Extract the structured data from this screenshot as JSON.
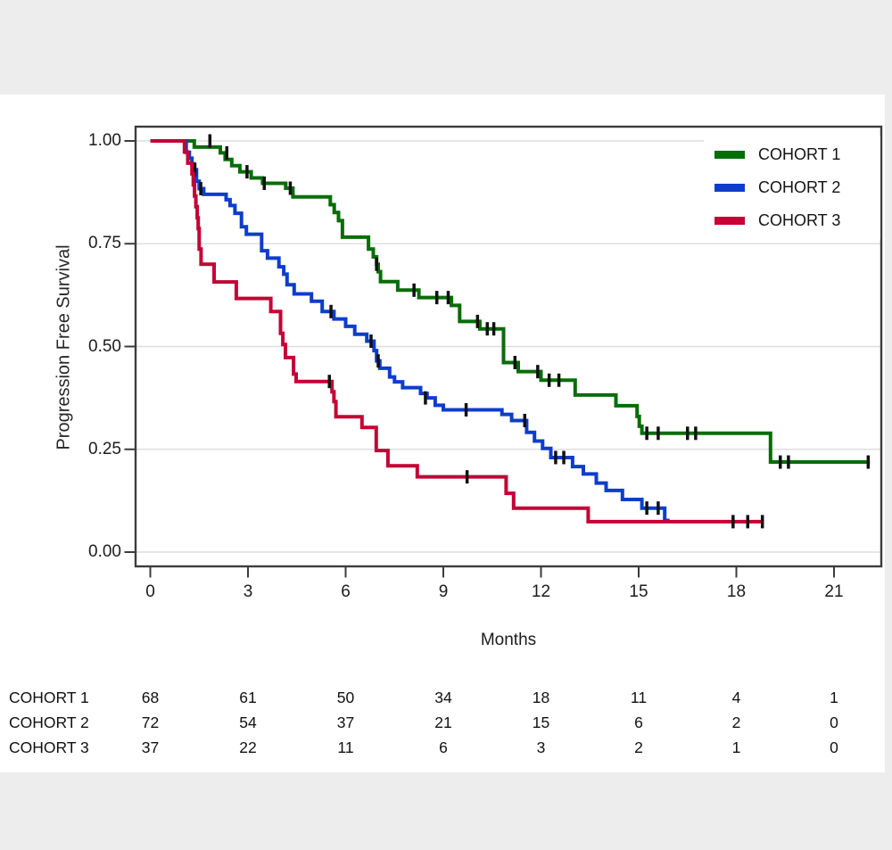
{
  "figure": {
    "background_color": "#ededed",
    "panel_color": "#ffffff",
    "axis_color": "#3c3c3c",
    "grid_color": "#dedede",
    "censor_color": "#111111"
  },
  "chart_data": {
    "type": "line",
    "subtype": "kaplan-meier-step",
    "title": "",
    "xlabel": "Months",
    "ylabel": "Progression Free Survival",
    "xticks": [
      0,
      3,
      6,
      9,
      12,
      15,
      18,
      21
    ],
    "ytick_labels": [
      "1.00",
      "0.75",
      "0.50",
      "0.25",
      "0.00"
    ],
    "ytick_values": [
      1.0,
      0.75,
      0.5,
      0.25,
      0.0
    ],
    "xlim": [
      0,
      22.45
    ],
    "ylim": [
      0,
      1
    ],
    "grid": true,
    "legend_position": "top-right",
    "series": [
      {
        "name": "COHORT 1",
        "color": "#076d07",
        "steps": [
          [
            0,
            1.0
          ],
          [
            1.35,
            0.985
          ],
          [
            2.15,
            0.971
          ],
          [
            2.3,
            0.955
          ],
          [
            2.5,
            0.94
          ],
          [
            2.75,
            0.925
          ],
          [
            3.1,
            0.91
          ],
          [
            3.45,
            0.897
          ],
          [
            4.16,
            0.885
          ],
          [
            4.38,
            0.864
          ],
          [
            5.53,
            0.845
          ],
          [
            5.65,
            0.826
          ],
          [
            5.78,
            0.806
          ],
          [
            5.9,
            0.766
          ],
          [
            6.7,
            0.737
          ],
          [
            6.85,
            0.718
          ],
          [
            6.95,
            0.7
          ],
          [
            7.0,
            0.682
          ],
          [
            7.07,
            0.658
          ],
          [
            7.6,
            0.637
          ],
          [
            8.25,
            0.619
          ],
          [
            9.25,
            0.6
          ],
          [
            9.5,
            0.561
          ],
          [
            10.12,
            0.543
          ],
          [
            10.85,
            0.461
          ],
          [
            11.3,
            0.439
          ],
          [
            12.0,
            0.418
          ],
          [
            13.05,
            0.382
          ],
          [
            14.3,
            0.356
          ],
          [
            14.95,
            0.33
          ],
          [
            15.02,
            0.306
          ],
          [
            15.1,
            0.289
          ],
          [
            19.05,
            0.219
          ],
          [
            22.1,
            0.219
          ]
        ],
        "censors": [
          [
            1.83,
            1.0
          ],
          [
            2.35,
            0.971
          ],
          [
            2.97,
            0.925
          ],
          [
            3.5,
            0.897
          ],
          [
            4.3,
            0.885
          ],
          [
            6.95,
            0.7
          ],
          [
            8.1,
            0.637
          ],
          [
            8.8,
            0.619
          ],
          [
            9.15,
            0.619
          ],
          [
            10.05,
            0.561
          ],
          [
            10.35,
            0.543
          ],
          [
            10.55,
            0.543
          ],
          [
            11.2,
            0.461
          ],
          [
            11.9,
            0.439
          ],
          [
            12.25,
            0.418
          ],
          [
            12.55,
            0.418
          ],
          [
            15.25,
            0.289
          ],
          [
            15.6,
            0.289
          ],
          [
            16.5,
            0.289
          ],
          [
            16.75,
            0.289
          ],
          [
            19.35,
            0.219
          ],
          [
            19.6,
            0.219
          ],
          [
            22.05,
            0.219
          ]
        ]
      },
      {
        "name": "COHORT 2",
        "color": "#0e3dcc",
        "steps": [
          [
            0,
            1.0
          ],
          [
            1.1,
            0.972
          ],
          [
            1.2,
            0.958
          ],
          [
            1.28,
            0.944
          ],
          [
            1.35,
            0.93
          ],
          [
            1.42,
            0.902
          ],
          [
            1.5,
            0.884
          ],
          [
            1.64,
            0.87
          ],
          [
            2.33,
            0.857
          ],
          [
            2.45,
            0.843
          ],
          [
            2.6,
            0.824
          ],
          [
            2.8,
            0.791
          ],
          [
            2.95,
            0.773
          ],
          [
            3.42,
            0.733
          ],
          [
            3.6,
            0.715
          ],
          [
            3.95,
            0.694
          ],
          [
            4.1,
            0.676
          ],
          [
            4.2,
            0.65
          ],
          [
            4.42,
            0.628
          ],
          [
            4.95,
            0.61
          ],
          [
            5.28,
            0.585
          ],
          [
            5.64,
            0.567
          ],
          [
            6.0,
            0.549
          ],
          [
            6.28,
            0.53
          ],
          [
            6.65,
            0.513
          ],
          [
            6.87,
            0.49
          ],
          [
            6.95,
            0.465
          ],
          [
            7.05,
            0.447
          ],
          [
            7.35,
            0.426
          ],
          [
            7.5,
            0.414
          ],
          [
            7.75,
            0.4
          ],
          [
            8.3,
            0.386
          ],
          [
            8.5,
            0.375
          ],
          [
            8.75,
            0.357
          ],
          [
            9.0,
            0.346
          ],
          [
            10.8,
            0.335
          ],
          [
            11.1,
            0.32
          ],
          [
            11.56,
            0.291
          ],
          [
            11.8,
            0.27
          ],
          [
            12.05,
            0.252
          ],
          [
            12.3,
            0.23
          ],
          [
            12.97,
            0.208
          ],
          [
            13.3,
            0.19
          ],
          [
            13.7,
            0.168
          ],
          [
            14.0,
            0.15
          ],
          [
            14.5,
            0.128
          ],
          [
            15.1,
            0.107
          ],
          [
            15.8,
            0.077
          ],
          [
            15.95,
            0.077
          ]
        ],
        "censors": [
          [
            1.37,
            0.93
          ],
          [
            1.55,
            0.884
          ],
          [
            5.55,
            0.585
          ],
          [
            6.78,
            0.513
          ],
          [
            7.0,
            0.465
          ],
          [
            8.45,
            0.375
          ],
          [
            9.7,
            0.346
          ],
          [
            11.5,
            0.32
          ],
          [
            12.45,
            0.23
          ],
          [
            12.7,
            0.23
          ],
          [
            15.25,
            0.107
          ],
          [
            15.6,
            0.107
          ]
        ]
      },
      {
        "name": "COHORT 3",
        "color": "#c40235",
        "steps": [
          [
            0,
            1.0
          ],
          [
            1.05,
            0.973
          ],
          [
            1.15,
            0.946
          ],
          [
            1.28,
            0.92
          ],
          [
            1.32,
            0.893
          ],
          [
            1.36,
            0.866
          ],
          [
            1.4,
            0.84
          ],
          [
            1.44,
            0.813
          ],
          [
            1.47,
            0.787
          ],
          [
            1.5,
            0.737
          ],
          [
            1.56,
            0.7
          ],
          [
            1.96,
            0.657
          ],
          [
            2.64,
            0.617
          ],
          [
            3.7,
            0.585
          ],
          [
            4.0,
            0.532
          ],
          [
            4.07,
            0.505
          ],
          [
            4.15,
            0.473
          ],
          [
            4.4,
            0.433
          ],
          [
            4.48,
            0.415
          ],
          [
            5.58,
            0.39
          ],
          [
            5.64,
            0.366
          ],
          [
            5.7,
            0.329
          ],
          [
            6.5,
            0.303
          ],
          [
            6.94,
            0.247
          ],
          [
            7.3,
            0.21
          ],
          [
            8.2,
            0.183
          ],
          [
            10.93,
            0.143
          ],
          [
            11.16,
            0.107
          ],
          [
            13.45,
            0.074
          ],
          [
            18.85,
            0.074
          ]
        ],
        "censors": [
          [
            5.5,
            0.415
          ],
          [
            9.73,
            0.183
          ],
          [
            17.9,
            0.074
          ],
          [
            18.35,
            0.074
          ],
          [
            18.8,
            0.074
          ]
        ]
      }
    ],
    "risk_table": {
      "time_points": [
        0,
        3,
        6,
        9,
        12,
        15,
        18,
        21
      ],
      "rows": [
        {
          "label": "COHORT 1",
          "values": [
            "68",
            "61",
            "50",
            "34",
            "18",
            "11",
            "4",
            "1"
          ]
        },
        {
          "label": "COHORT 2",
          "values": [
            "72",
            "54",
            "37",
            "21",
            "15",
            "6",
            "2",
            "0"
          ]
        },
        {
          "label": "COHORT 3",
          "values": [
            "37",
            "22",
            "11",
            "6",
            "3",
            "2",
            "1",
            "0"
          ]
        }
      ]
    }
  },
  "legend": {
    "items": [
      {
        "label": "COHORT 1",
        "color": "#076d07"
      },
      {
        "label": "COHORT 2",
        "color": "#0e3dcc"
      },
      {
        "label": "COHORT 3",
        "color": "#c40235"
      }
    ]
  }
}
